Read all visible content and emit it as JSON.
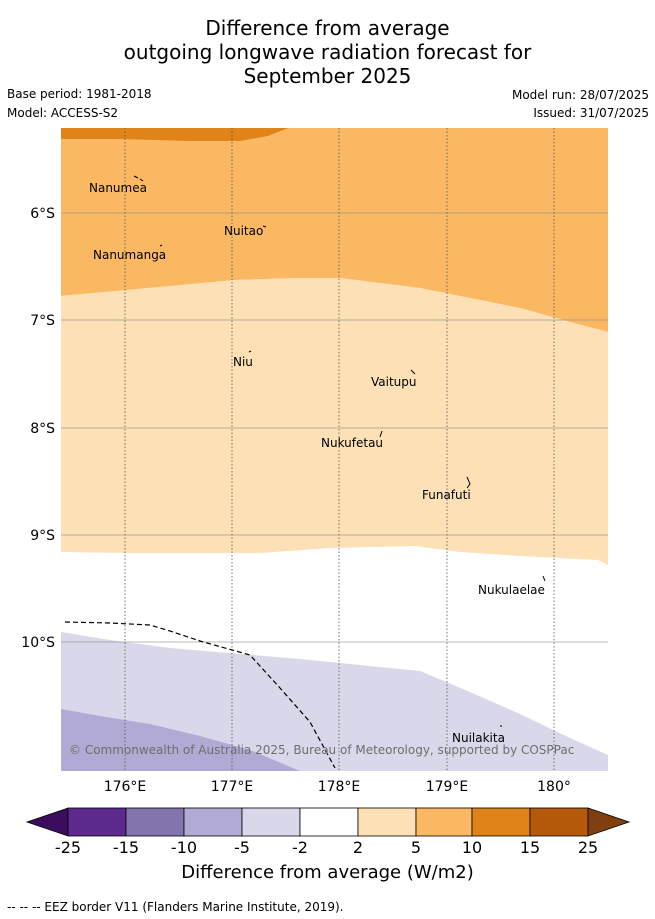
{
  "title": {
    "line1": "Difference from average",
    "line2": "outgoing longwave radiation forecast for",
    "line3": "September 2025"
  },
  "meta": {
    "base_period": "Base period: 1981-2018",
    "model": "Model: ACCESS-S2",
    "model_run": "Model run: 28/07/2025",
    "issued": "Issued: 31/07/2025"
  },
  "map": {
    "lat_labels": [
      "6°S",
      "7°S",
      "8°S",
      "9°S",
      "10°S"
    ],
    "lon_labels": [
      "176°E",
      "177°E",
      "178°E",
      "179°E",
      "180°"
    ],
    "places": [
      "Nanumea",
      "Nuitao",
      "Nanumanga",
      "Niu",
      "Vaitupu",
      "Nukufetau",
      "Funafuti",
      "Nukulaelae",
      "Nuilakita"
    ],
    "copyright": "© Commonwealth of Australia 2025, Bureau of Meteorology, supported by COSPPac"
  },
  "colorbar": {
    "labels": [
      "-25",
      "-15",
      "-10",
      "-5",
      "-2",
      "2",
      "5",
      "10",
      "15",
      "25"
    ],
    "colors": [
      "#3b0d5e",
      "#5b2a8c",
      "#8374ae",
      "#b0aad4",
      "#d8d8ea",
      "#ffffff",
      "#fde0b6",
      "#fbb863",
      "#e08419",
      "#b55a0a",
      "#7f3f0f"
    ],
    "title": "Difference from average (W/m2)"
  },
  "footnote": "--  --  -- EEZ border V11 (Flanders Marine Institute, 2019)."
}
